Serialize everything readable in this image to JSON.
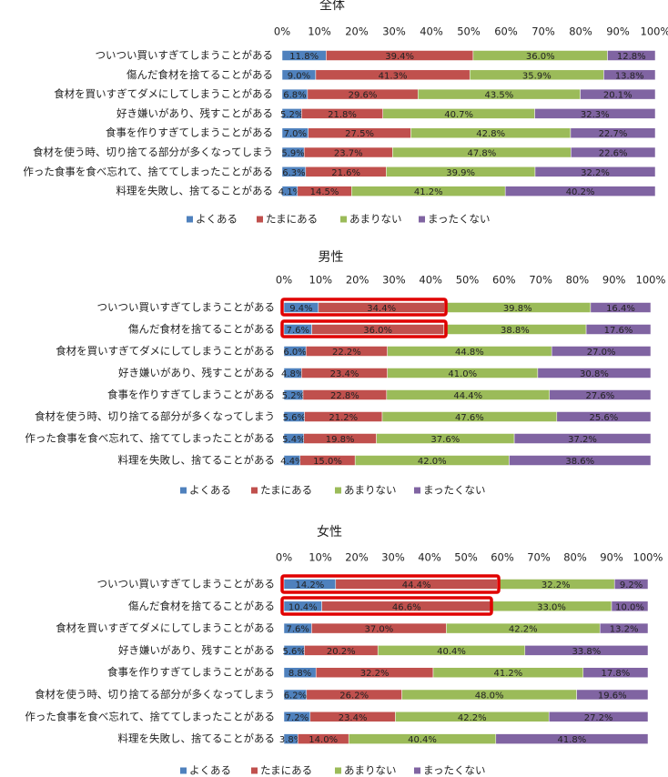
{
  "chart_data": [
    {
      "type": "stacked-bar-horizontal",
      "title": "全体",
      "categories": [
        "ついつい買いすぎてしまうことがある",
        "傷んだ食材を捨てることがある",
        "食材を買いすぎてダメにしてしまうことがある",
        "好き嫌いがあり、残すことがある",
        "食事を作りすぎてしまうことがある",
        "食材を使う時、切り捨てる部分が多くなってしまう",
        "作った食事を食べ忘れて、捨ててしまったことがある",
        "料理を失敗し、捨てることがある"
      ],
      "series": [
        {
          "name": "よくある",
          "color": "#4f81bd",
          "values": [
            11.8,
            9.0,
            6.8,
            5.2,
            7.0,
            5.9,
            6.3,
            4.1
          ],
          "value_labels": [
            "11.8%",
            "9.0%",
            "6.8%",
            "5.2%",
            "7.0%",
            "5.9%",
            "6.3%",
            "4.1%"
          ]
        },
        {
          "name": "たまにある",
          "color": "#c0504d",
          "values": [
            39.4,
            41.3,
            29.6,
            21.8,
            27.5,
            23.7,
            21.6,
            14.5
          ],
          "value_labels": [
            "39.4%",
            "41.3%",
            "29.6%",
            "21.8%",
            "27.5%",
            "23.7%",
            "21.6%",
            "14.5%"
          ]
        },
        {
          "name": "あまりない",
          "color": "#9bbb59",
          "values": [
            36.0,
            35.9,
            43.5,
            40.7,
            42.8,
            47.8,
            39.9,
            41.2
          ],
          "value_labels": [
            "36.0%",
            "35.9%",
            "43.5%",
            "40.7%",
            "42.8%",
            "47.8%",
            "39.9%",
            "41.2%"
          ]
        },
        {
          "name": "まったくない",
          "color": "#8064a2",
          "values": [
            12.8,
            13.8,
            20.1,
            32.3,
            22.7,
            22.6,
            32.2,
            40.2
          ],
          "value_labels": [
            "12.8%",
            "13.8%",
            "20.1%",
            "32.3%",
            "22.7%",
            "22.6%",
            "32.2%",
            "40.2%"
          ]
        }
      ],
      "xlim": [
        0,
        100
      ],
      "xticks": [
        {
          "value": 0,
          "label": "0%"
        },
        {
          "value": 10,
          "label": "10%"
        },
        {
          "value": 20,
          "label": "20%"
        },
        {
          "value": 30,
          "label": "30%"
        },
        {
          "value": 40,
          "label": "40%"
        },
        {
          "value": 50,
          "label": "50%"
        },
        {
          "value": 60,
          "label": "60%"
        },
        {
          "value": 70,
          "label": "70%"
        },
        {
          "value": 80,
          "label": "80%"
        },
        {
          "value": 90,
          "label": "90%"
        },
        {
          "value": 100,
          "label": "100%"
        }
      ],
      "legend": "bottom"
    },
    {
      "type": "stacked-bar-horizontal",
      "title": "男性",
      "categories": [
        "ついつい買いすぎてしまうことがある",
        "傷んだ食材を捨てることがある",
        "食材を買いすぎてダメにしてしまうことがある",
        "好き嫌いがあり、残すことがある",
        "食事を作りすぎてしまうことがある",
        "食材を使う時、切り捨てる部分が多くなってしまう",
        "作った食事を食べ忘れて、捨ててしまったことがある",
        "料理を失敗し、捨てることがある"
      ],
      "series": [
        {
          "name": "よくある",
          "color": "#4f81bd",
          "values": [
            9.4,
            7.6,
            6.0,
            4.8,
            5.2,
            5.6,
            5.4,
            4.4
          ],
          "value_labels": [
            "9.4%",
            "7.6%",
            "6.0%",
            "4.8%",
            "5.2%",
            "5.6%",
            "5.4%",
            "4.4%"
          ]
        },
        {
          "name": "たまにある",
          "color": "#c0504d",
          "values": [
            34.4,
            36.0,
            22.2,
            23.4,
            22.8,
            21.2,
            19.8,
            15.0
          ],
          "value_labels": [
            "34.4%",
            "36.0%",
            "22.2%",
            "23.4%",
            "22.8%",
            "21.2%",
            "19.8%",
            "15.0%"
          ]
        },
        {
          "name": "あまりない",
          "color": "#9bbb59",
          "values": [
            39.8,
            38.8,
            44.8,
            41.0,
            44.4,
            47.6,
            37.6,
            42.0
          ],
          "value_labels": [
            "39.8%",
            "38.8%",
            "44.8%",
            "41.0%",
            "44.4%",
            "47.6%",
            "37.6%",
            "42.0%"
          ]
        },
        {
          "name": "まったくない",
          "color": "#8064a2",
          "values": [
            16.4,
            17.6,
            27.0,
            30.8,
            27.6,
            25.6,
            37.2,
            38.6
          ],
          "value_labels": [
            "16.4%",
            "17.6%",
            "27.0%",
            "30.8%",
            "27.6%",
            "25.6%",
            "37.2%",
            "38.6%"
          ]
        }
      ],
      "xlim": [
        0,
        100
      ],
      "xticks": [
        {
          "value": 0,
          "label": "0%"
        },
        {
          "value": 10,
          "label": "10%"
        },
        {
          "value": 20,
          "label": "20%"
        },
        {
          "value": 30,
          "label": "30%"
        },
        {
          "value": 40,
          "label": "40%"
        },
        {
          "value": 50,
          "label": "50%"
        },
        {
          "value": 60,
          "label": "60%"
        },
        {
          "value": 70,
          "label": "70%"
        },
        {
          "value": 80,
          "label": "80%"
        },
        {
          "value": 90,
          "label": "90%"
        },
        {
          "value": 100,
          "label": "100%"
        }
      ],
      "legend": "bottom"
    },
    {
      "type": "stacked-bar-horizontal",
      "title": "女性",
      "categories": [
        "ついつい買いすぎてしまうことがある",
        "傷んだ食材を捨てることがある",
        "食材を買いすぎてダメにしてしまうことがある",
        "好き嫌いがあり、残すことがある",
        "食事を作りすぎてしまうことがある",
        "食材を使う時、切り捨てる部分が多くなってしまう",
        "作った食事を食べ忘れて、捨ててしまったことがある",
        "料理を失敗し、捨てることがある"
      ],
      "series": [
        {
          "name": "よくある",
          "color": "#4f81bd",
          "values": [
            14.2,
            10.4,
            7.6,
            5.6,
            8.8,
            6.2,
            7.2,
            3.8
          ],
          "value_labels": [
            "14.2%",
            "10.4%",
            "7.6%",
            "5.6%",
            "8.8%",
            "6.2%",
            "7.2%",
            "3.8%"
          ]
        },
        {
          "name": "たまにある",
          "color": "#c0504d",
          "values": [
            44.4,
            46.6,
            37.0,
            20.2,
            32.2,
            26.2,
            23.4,
            14.0
          ],
          "value_labels": [
            "44.4%",
            "46.6%",
            "37.0%",
            "20.2%",
            "32.2%",
            "26.2%",
            "23.4%",
            "14.0%"
          ]
        },
        {
          "name": "あまりない",
          "color": "#9bbb59",
          "values": [
            32.2,
            33.0,
            42.2,
            40.4,
            41.2,
            48.0,
            42.2,
            40.4
          ],
          "value_labels": [
            "32.2%",
            "33.0%",
            "42.2%",
            "40.4%",
            "41.2%",
            "48.0%",
            "42.2%",
            "40.4%"
          ]
        },
        {
          "name": "まったくない",
          "color": "#8064a2",
          "values": [
            9.2,
            10.0,
            13.2,
            33.8,
            17.8,
            19.6,
            27.2,
            41.8
          ],
          "value_labels": [
            "9.2%",
            "10.0%",
            "13.2%",
            "33.8%",
            "17.8%",
            "19.6%",
            "27.2%",
            "41.8%"
          ]
        }
      ],
      "xlim": [
        0,
        100
      ],
      "xticks": [
        {
          "value": 0,
          "label": "0%"
        },
        {
          "value": 10,
          "label": "10%"
        },
        {
          "value": 20,
          "label": "20%"
        },
        {
          "value": 30,
          "label": "30%"
        },
        {
          "value": 40,
          "label": "40%"
        },
        {
          "value": 50,
          "label": "50%"
        },
        {
          "value": 60,
          "label": "60%"
        },
        {
          "value": 70,
          "label": "70%"
        },
        {
          "value": 80,
          "label": "80%"
        },
        {
          "value": 90,
          "label": "90%"
        },
        {
          "value": 100,
          "label": "100%"
        }
      ],
      "legend": "bottom"
    }
  ]
}
